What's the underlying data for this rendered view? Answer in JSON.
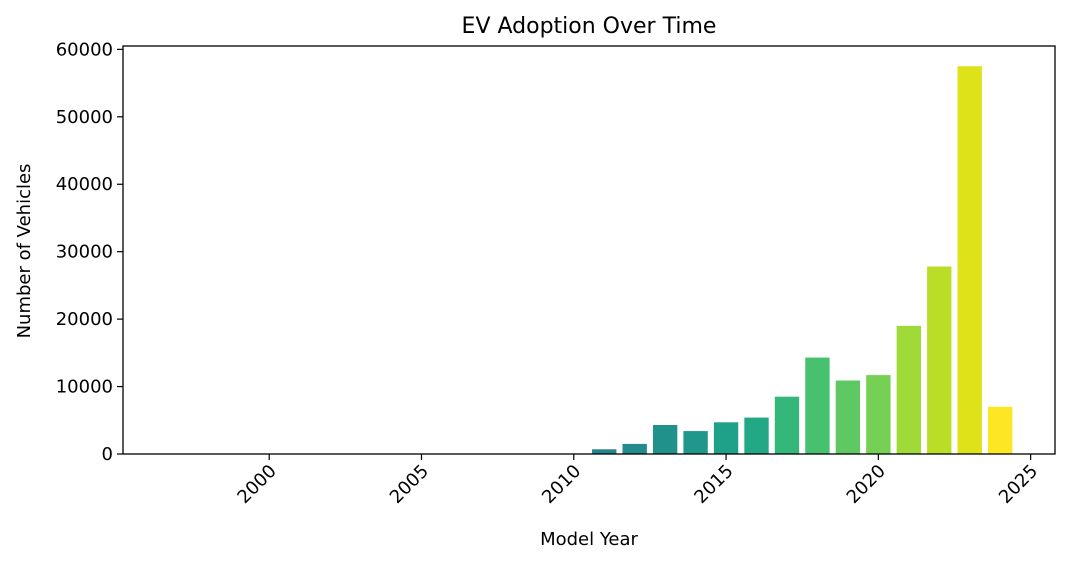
{
  "chart_data": {
    "type": "bar",
    "title": "EV Adoption Over Time",
    "xlabel": "Model Year",
    "ylabel": "Number of Vehicles",
    "xlim": [
      1995.2,
      2025.8
    ],
    "ylim": [
      0,
      60500
    ],
    "xticks": [
      2000,
      2005,
      2010,
      2015,
      2020,
      2025
    ],
    "yticks": [
      0,
      10000,
      20000,
      30000,
      40000,
      50000,
      60000
    ],
    "grid": false,
    "bars": [
      {
        "x": 1997,
        "value": 1,
        "color": "#440154"
      },
      {
        "x": 1998,
        "value": 1,
        "color": "#46085c"
      },
      {
        "x": 1999,
        "value": 3,
        "color": "#471063"
      },
      {
        "x": 2000,
        "value": 5,
        "color": "#481769"
      },
      {
        "x": 2002,
        "value": 2,
        "color": "#472a7a"
      },
      {
        "x": 2003,
        "value": 1,
        "color": "#433e85"
      },
      {
        "x": 2008,
        "value": 20,
        "color": "#2d708e"
      },
      {
        "x": 2010,
        "value": 30,
        "color": "#287d8e"
      },
      {
        "x": 2011,
        "value": 700,
        "color": "#25848e"
      },
      {
        "x": 2012,
        "value": 1500,
        "color": "#238a8d"
      },
      {
        "x": 2013,
        "value": 4300,
        "color": "#21918c"
      },
      {
        "x": 2014,
        "value": 3400,
        "color": "#1f988b"
      },
      {
        "x": 2015,
        "value": 4700,
        "color": "#1fa088"
      },
      {
        "x": 2016,
        "value": 5400,
        "color": "#22a884"
      },
      {
        "x": 2017,
        "value": 8500,
        "color": "#35b779"
      },
      {
        "x": 2018,
        "value": 14300,
        "color": "#48c16e"
      },
      {
        "x": 2019,
        "value": 10900,
        "color": "#5ec962"
      },
      {
        "x": 2020,
        "value": 11700,
        "color": "#75d054"
      },
      {
        "x": 2021,
        "value": 19000,
        "color": "#a0da39"
      },
      {
        "x": 2022,
        "value": 27800,
        "color": "#bade28"
      },
      {
        "x": 2023,
        "value": 57500,
        "color": "#dde318"
      },
      {
        "x": 2024,
        "value": 7000,
        "color": "#fde725"
      }
    ]
  }
}
